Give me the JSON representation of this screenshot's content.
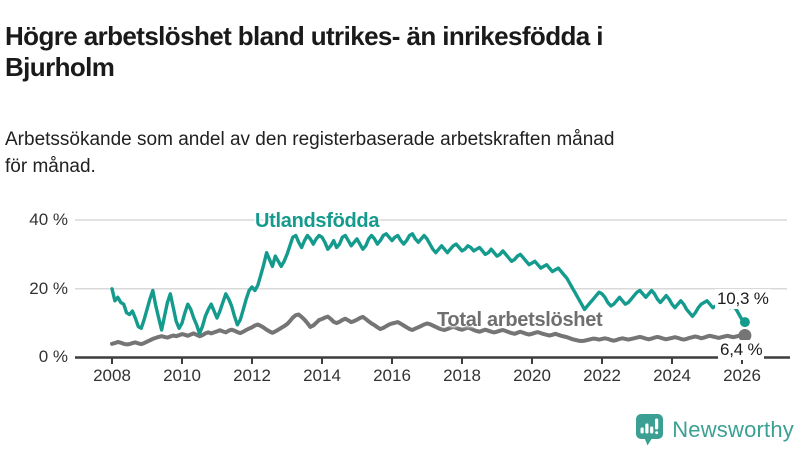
{
  "header": {
    "title_line1": "Högre arbetslöshet bland utrikes- än inrikesfödda i",
    "title_line2": "Bjurholm",
    "subtitle_line1": "Arbetssökande som andel av den registerbaserade arbetskraften månad",
    "subtitle_line2": "för månad."
  },
  "chart_data": {
    "type": "line",
    "title": "Högre arbetslöshet bland utrikes- än inrikesfödda i Bjurholm",
    "subtitle": "Arbetssökande som andel av den registerbaserade arbetskraften månad för månad.",
    "x_unit": "month",
    "x_range": [
      "2008-01",
      "2026-02"
    ],
    "ylim": [
      0,
      43
    ],
    "grid": "horizontal",
    "legend_position": "inline-labels",
    "x_ticks": [
      "2008",
      "2010",
      "2012",
      "2014",
      "2016",
      "2018",
      "2020",
      "2022",
      "2024",
      "2026"
    ],
    "y_ticks": [
      {
        "value": 0,
        "label": "0 %"
      },
      {
        "value": 20,
        "label": "20 %"
      },
      {
        "value": 40,
        "label": "40 %"
      }
    ],
    "series": [
      {
        "name": "Utlandsfödda",
        "color": "#149b8d",
        "end_label": "10,3 %",
        "end_value": 10.3,
        "values": [
          20.0,
          16.5,
          17.5,
          16.0,
          15.5,
          13.0,
          12.5,
          13.5,
          11.5,
          9.0,
          8.5,
          11.0,
          14.0,
          17.0,
          19.5,
          15.0,
          11.5,
          8.0,
          12.0,
          16.0,
          18.5,
          14.5,
          10.5,
          8.5,
          10.0,
          13.0,
          15.5,
          14.0,
          11.5,
          9.5,
          7.0,
          9.0,
          12.0,
          14.0,
          15.5,
          13.5,
          11.5,
          13.5,
          16.0,
          18.5,
          17.0,
          15.0,
          12.0,
          9.5,
          11.0,
          14.0,
          17.0,
          19.5,
          20.5,
          19.5,
          21.0,
          24.0,
          27.0,
          30.5,
          28.5,
          26.5,
          29.5,
          28.0,
          26.5,
          28.0,
          30.0,
          32.5,
          35.0,
          35.5,
          33.5,
          32.0,
          34.0,
          35.5,
          34.5,
          33.0,
          34.5,
          35.5,
          35.0,
          33.5,
          31.5,
          32.5,
          34.0,
          32.0,
          33.0,
          35.0,
          35.5,
          34.0,
          32.5,
          33.5,
          34.5,
          33.0,
          31.5,
          32.5,
          34.5,
          35.5,
          34.5,
          33.0,
          34.0,
          35.5,
          36.0,
          35.0,
          34.0,
          35.0,
          35.5,
          34.0,
          33.0,
          34.0,
          35.5,
          36.0,
          34.5,
          33.5,
          34.5,
          35.5,
          34.5,
          33.0,
          31.5,
          30.5,
          31.5,
          32.5,
          31.5,
          30.5,
          31.5,
          32.5,
          33.0,
          32.0,
          31.0,
          31.5,
          32.5,
          32.0,
          31.0,
          31.5,
          32.0,
          31.0,
          30.0,
          30.5,
          31.5,
          30.5,
          29.5,
          30.0,
          31.0,
          30.0,
          29.0,
          28.0,
          28.5,
          29.5,
          30.0,
          29.0,
          28.0,
          27.0,
          27.5,
          28.0,
          27.0,
          26.0,
          26.5,
          27.0,
          26.0,
          25.0,
          25.5,
          26.0,
          25.0,
          24.0,
          23.0,
          21.5,
          20.0,
          18.5,
          17.0,
          15.5,
          14.0,
          15.0,
          16.0,
          17.0,
          18.0,
          19.0,
          18.5,
          17.5,
          16.0,
          15.0,
          15.5,
          16.5,
          17.5,
          16.5,
          15.5,
          16.0,
          17.0,
          18.0,
          19.0,
          19.5,
          18.5,
          17.5,
          18.5,
          19.5,
          18.5,
          17.0,
          16.0,
          17.0,
          18.0,
          17.0,
          15.5,
          14.5,
          15.5,
          16.5,
          15.5,
          14.0,
          13.0,
          12.0,
          13.0,
          14.5,
          15.5,
          16.0,
          16.5,
          15.5,
          14.5,
          15.0,
          15.5,
          16.0,
          15.5,
          15.0,
          14.5,
          15.0,
          14.0,
          12.5,
          11.0,
          10.3
        ]
      },
      {
        "name": "Total arbetslöshet",
        "color": "#757575",
        "end_label": "6,4 %",
        "end_value": 6.4,
        "values": [
          4.0,
          4.2,
          4.5,
          4.3,
          4.0,
          3.8,
          3.9,
          4.2,
          4.4,
          4.1,
          3.9,
          4.2,
          4.6,
          5.0,
          5.4,
          5.7,
          6.0,
          6.2,
          6.0,
          5.8,
          6.1,
          6.4,
          6.2,
          6.5,
          6.8,
          6.6,
          6.3,
          6.7,
          7.0,
          6.6,
          6.2,
          6.5,
          7.0,
          7.3,
          7.0,
          7.3,
          7.6,
          7.9,
          7.6,
          7.3,
          7.8,
          8.1,
          7.8,
          7.4,
          7.1,
          7.5,
          8.0,
          8.4,
          8.8,
          9.3,
          9.6,
          9.2,
          8.7,
          8.1,
          7.6,
          7.2,
          7.6,
          8.1,
          8.6,
          9.1,
          9.7,
          10.6,
          11.6,
          12.3,
          12.5,
          11.8,
          11.0,
          10.0,
          8.9,
          9.3,
          10.1,
          10.9,
          11.2,
          11.6,
          11.9,
          11.2,
          10.4,
          10.0,
          10.4,
          10.9,
          11.3,
          10.8,
          10.3,
          10.6,
          11.0,
          11.5,
          11.8,
          11.2,
          10.5,
          9.9,
          9.4,
          8.8,
          8.3,
          8.6,
          9.1,
          9.6,
          9.9,
          10.1,
          10.3,
          9.8,
          9.3,
          8.8,
          8.3,
          8.0,
          8.4,
          8.8,
          9.2,
          9.6,
          9.9,
          9.7,
          9.3,
          8.9,
          8.5,
          8.2,
          8.0,
          8.3,
          8.6,
          8.9,
          8.6,
          8.3,
          8.1,
          8.4,
          8.7,
          8.4,
          8.0,
          7.7,
          7.5,
          7.8,
          8.1,
          7.8,
          7.5,
          7.3,
          7.5,
          7.8,
          8.0,
          7.7,
          7.4,
          7.1,
          6.9,
          7.2,
          7.5,
          7.2,
          6.9,
          6.7,
          6.9,
          7.2,
          7.4,
          7.1,
          6.8,
          6.6,
          6.4,
          6.6,
          6.9,
          6.6,
          6.3,
          6.1,
          5.9,
          5.6,
          5.3,
          5.1,
          4.9,
          4.8,
          4.9,
          5.1,
          5.3,
          5.5,
          5.4,
          5.2,
          5.4,
          5.6,
          5.4,
          5.1,
          4.9,
          5.1,
          5.4,
          5.6,
          5.4,
          5.2,
          5.4,
          5.6,
          5.8,
          6.0,
          5.8,
          5.5,
          5.3,
          5.5,
          5.8,
          6.0,
          5.8,
          5.5,
          5.3,
          5.5,
          5.7,
          5.9,
          5.7,
          5.4,
          5.2,
          5.4,
          5.7,
          5.9,
          6.1,
          5.9,
          5.6,
          5.8,
          6.1,
          6.3,
          6.1,
          5.9,
          5.7,
          5.9,
          6.1,
          6.3,
          6.1,
          5.9,
          6.1,
          6.3,
          6.4,
          6.4
        ]
      }
    ]
  },
  "footer": {
    "brand": "Newsworthy"
  },
  "colors": {
    "foreign_line": "#149b8d",
    "total_line": "#757575",
    "total_label": "#6f6f6f",
    "grid": "#d9d9d9",
    "axis": "#3d3d3d",
    "value_label": "#1c1c1c",
    "brand": "#3ba093",
    "title": "#1a1a1a"
  }
}
